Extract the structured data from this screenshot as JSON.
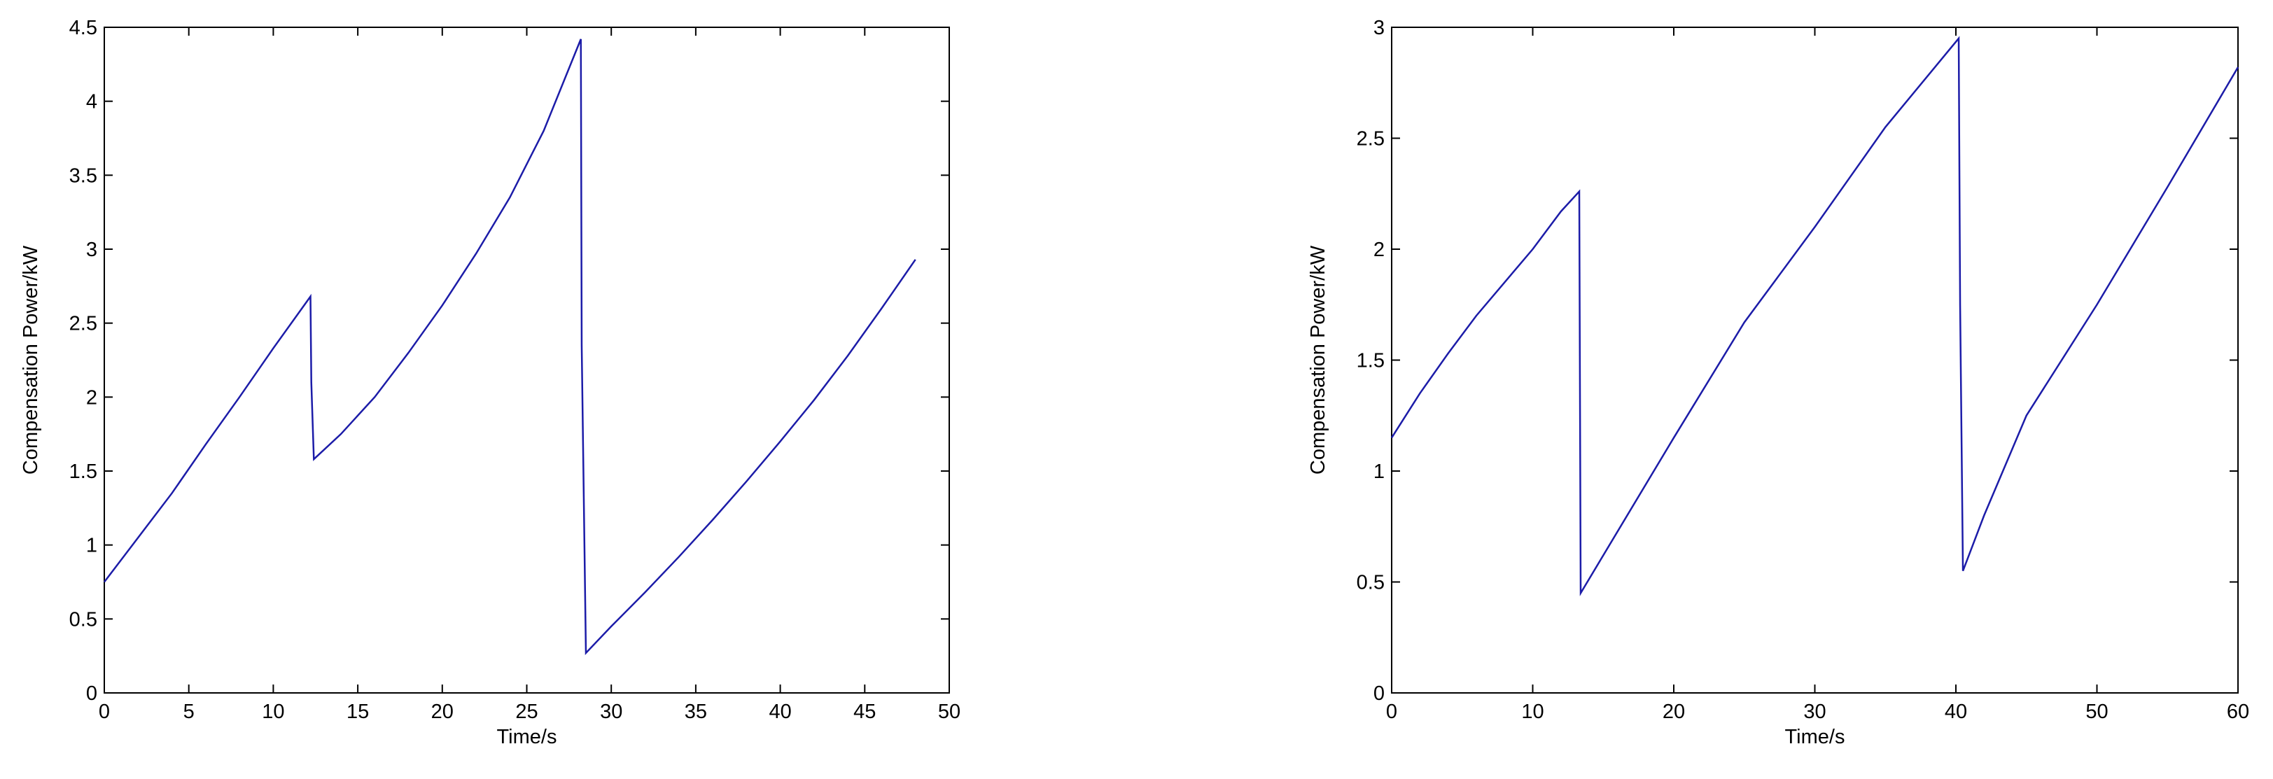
{
  "chart_data": [
    {
      "type": "line",
      "xlabel": "Time/s",
      "ylabel": "Compensation Power/kW",
      "color": "#1c1ca8",
      "xlim": [
        0,
        50
      ],
      "ylim": [
        0,
        4.5
      ],
      "xticks": [
        0,
        5,
        10,
        15,
        20,
        25,
        30,
        35,
        40,
        45,
        50
      ],
      "yticks": [
        0,
        0.5,
        1,
        1.5,
        2,
        2.5,
        3,
        3.5,
        4,
        4.5
      ],
      "x": [
        0,
        2,
        4,
        6,
        8,
        10,
        12.2,
        12.25,
        12.4,
        14,
        16,
        18,
        20,
        22,
        24,
        26,
        28.2,
        28.25,
        28.5,
        30,
        32,
        34,
        36,
        38,
        40,
        42,
        44,
        46,
        48
      ],
      "values": [
        0.75,
        1.05,
        1.35,
        1.68,
        2.0,
        2.33,
        2.68,
        2.1,
        1.58,
        1.75,
        2.0,
        2.3,
        2.62,
        2.97,
        3.35,
        3.8,
        4.42,
        2.35,
        0.27,
        0.45,
        0.68,
        0.92,
        1.17,
        1.43,
        1.7,
        1.98,
        2.28,
        2.6,
        2.93
      ]
    },
    {
      "type": "line",
      "xlabel": "Time/s",
      "ylabel": "Compensation Power/kW",
      "color": "#1c1ca8",
      "xlim": [
        0,
        60
      ],
      "ylim": [
        0,
        3
      ],
      "xticks": [
        0,
        10,
        20,
        30,
        40,
        50,
        60
      ],
      "yticks": [
        0,
        0.5,
        1,
        1.5,
        2,
        2.5,
        3
      ],
      "x": [
        0,
        2,
        4,
        6,
        8,
        10,
        12,
        13.3,
        13.4,
        15,
        20,
        25,
        30,
        35,
        40.2,
        40.3,
        40.5,
        42,
        45,
        50,
        55,
        60
      ],
      "values": [
        1.15,
        1.35,
        1.53,
        1.7,
        1.85,
        2.0,
        2.17,
        2.26,
        0.45,
        0.62,
        1.15,
        1.67,
        2.1,
        2.55,
        2.95,
        1.75,
        0.55,
        0.8,
        1.25,
        1.75,
        2.28,
        2.82
      ]
    }
  ]
}
